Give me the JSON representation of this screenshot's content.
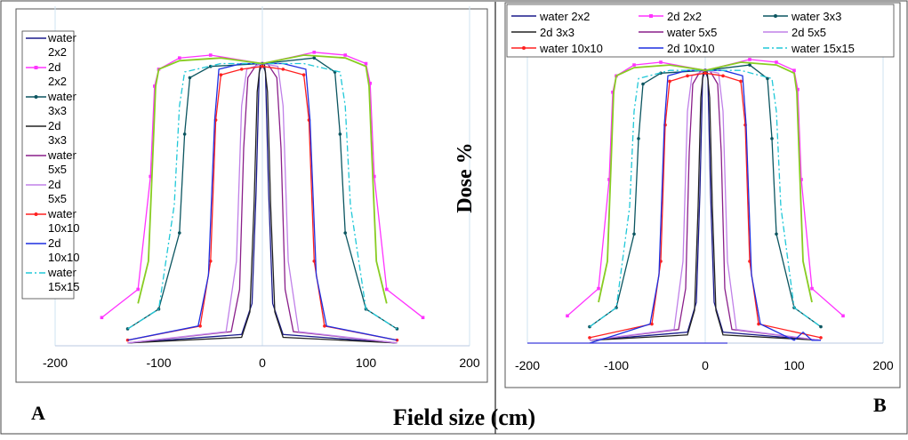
{
  "figure": {
    "ylabel": "Dose %",
    "xlabel": "Field size (cm)",
    "panel_a_label": "A",
    "panel_b_label": "B"
  },
  "legend_b_labels": [
    "water 2x2",
    "2d 2x2",
    "water 3x3",
    "2d 3x3",
    "water 5x5",
    "2d 5x5",
    "water 10x10",
    "2d 10x10",
    "water 15x15"
  ],
  "series_style": [
    {
      "color": "#1a1a8c",
      "dash": "",
      "marker": "none"
    },
    {
      "color": "#ff33ff",
      "dash": "",
      "marker": "square"
    },
    {
      "color": "#0b5560",
      "dash": "",
      "marker": "dot"
    },
    {
      "color": "#222222",
      "dash": "",
      "marker": "none"
    },
    {
      "color": "#8a1f8a",
      "dash": "",
      "marker": "none"
    },
    {
      "color": "#c080e8",
      "dash": "",
      "marker": "none"
    },
    {
      "color": "#ff2020",
      "dash": "",
      "marker": "dot"
    },
    {
      "color": "#1d2ee0",
      "dash": "",
      "marker": "none"
    },
    {
      "color": "#20c8d8",
      "dash": "7,3,2,3",
      "marker": "none"
    }
  ],
  "extra_curve_color": "#88cc22",
  "chart_data": [
    {
      "type": "line",
      "panel": "A",
      "xlim": [
        -200,
        200
      ],
      "ylim": [
        0,
        115
      ],
      "xticks": [
        -200,
        -100,
        0,
        100,
        200
      ],
      "grid": "vertical lines at -200, 0, 200",
      "legend": {
        "placement": "left-top",
        "labels": [
          "water",
          "2x2",
          "2d",
          "2x2",
          "water",
          "3x3",
          "2d",
          "3x3",
          "water",
          "5x5",
          "2d",
          "5x5",
          "water",
          "10x10",
          "2d",
          "10x10",
          "water",
          "15x15"
        ]
      },
      "series": [
        {
          "name": "water 2x2",
          "x": [
            -130,
            -20,
            -10,
            -6,
            -3,
            0,
            3,
            6,
            10,
            20,
            130
          ],
          "y": [
            1,
            4,
            15,
            55,
            97,
            100,
            97,
            55,
            15,
            4,
            1
          ]
        },
        {
          "name": "2d 2x2",
          "x": [
            -155,
            -120,
            -108,
            -104,
            -100,
            -80,
            -50,
            0,
            50,
            80,
            100,
            104,
            108,
            120,
            155
          ],
          "y": [
            10,
            20,
            60,
            92,
            98,
            102,
            103,
            100,
            104,
            103,
            100,
            93,
            60,
            20,
            10
          ]
        },
        {
          "name": "water 3x3",
          "x": [
            -130,
            -100,
            -80,
            -75,
            -70,
            -50,
            0,
            50,
            70,
            75,
            80,
            100,
            130
          ],
          "y": [
            6,
            13,
            40,
            75,
            95,
            99,
            100,
            102,
            97,
            75,
            40,
            13,
            6
          ]
        },
        {
          "name": "2d 3x3",
          "x": [
            -130,
            -20,
            -12,
            -8,
            -5,
            -2,
            2,
            5,
            8,
            12,
            20,
            130
          ],
          "y": [
            1,
            3,
            12,
            50,
            90,
            100,
            100,
            90,
            50,
            12,
            3,
            1
          ]
        },
        {
          "name": "water 5x5",
          "x": [
            -130,
            -30,
            -22,
            -18,
            -14,
            -5,
            5,
            14,
            18,
            22,
            30,
            130
          ],
          "y": [
            1,
            5,
            20,
            70,
            95,
            100,
            100,
            95,
            70,
            20,
            5,
            1
          ]
        },
        {
          "name": "2d 5x5",
          "x": [
            -130,
            -35,
            -25,
            -20,
            -15,
            0,
            15,
            20,
            25,
            35,
            130
          ],
          "y": [
            1,
            5,
            30,
            85,
            98,
            100,
            99,
            85,
            30,
            5,
            1
          ]
        },
        {
          "name": "water 10x10",
          "x": [
            -130,
            -60,
            -50,
            -45,
            -40,
            -20,
            0,
            20,
            40,
            45,
            50,
            60,
            130
          ],
          "y": [
            2,
            7,
            30,
            80,
            96,
            98,
            99,
            98,
            96,
            80,
            30,
            7,
            2
          ]
        },
        {
          "name": "2d 10x10",
          "x": [
            -130,
            -62,
            -52,
            -46,
            -42,
            -20,
            0,
            20,
            42,
            46,
            52,
            62,
            130
          ],
          "y": [
            2,
            7,
            25,
            80,
            98,
            100,
            100,
            100,
            98,
            80,
            25,
            7,
            2
          ]
        },
        {
          "name": "water 15x15",
          "x": [
            -130,
            -100,
            -85,
            -80,
            -75,
            -40,
            0,
            40,
            75,
            80,
            85,
            100,
            130
          ],
          "y": [
            6,
            13,
            50,
            85,
            97,
            100,
            100,
            100,
            97,
            85,
            50,
            13,
            6
          ]
        },
        {
          "name": "",
          "x": [
            -120,
            -110,
            -106,
            -103,
            -100,
            -80,
            -40,
            0,
            40,
            80,
            100,
            103,
            106,
            110,
            120
          ],
          "y": [
            15,
            30,
            65,
            92,
            98,
            101,
            102,
            100,
            103,
            102,
            99,
            92,
            65,
            30,
            15
          ]
        }
      ]
    },
    {
      "type": "line",
      "panel": "B",
      "xlim": [
        -200,
        200
      ],
      "ylim": [
        0,
        115
      ],
      "xticks": [
        -200,
        -100,
        0,
        100,
        200
      ],
      "grid": "vertical lines at -200, 0, 200",
      "legend": {
        "placement": "top",
        "columns": 3
      },
      "series": [
        {
          "name": "water 2x2",
          "x": [
            -130,
            -20,
            -10,
            -6,
            -3,
            0,
            3,
            6,
            10,
            20,
            130
          ],
          "y": [
            1,
            4,
            15,
            55,
            97,
            100,
            97,
            55,
            15,
            4,
            1
          ]
        },
        {
          "name": "2d 2x2",
          "x": [
            -155,
            -120,
            -108,
            -104,
            -100,
            -80,
            -50,
            0,
            50,
            80,
            100,
            104,
            108,
            120,
            155
          ],
          "y": [
            10,
            20,
            60,
            92,
            98,
            102,
            103,
            100,
            104,
            103,
            100,
            93,
            60,
            20,
            10
          ]
        },
        {
          "name": "water 3x3",
          "x": [
            -130,
            -100,
            -80,
            -75,
            -70,
            -50,
            0,
            50,
            70,
            75,
            80,
            100,
            130
          ],
          "y": [
            6,
            13,
            40,
            75,
            95,
            99,
            100,
            102,
            97,
            75,
            40,
            13,
            6
          ]
        },
        {
          "name": "2d 3x3",
          "x": [
            -130,
            -20,
            -12,
            -8,
            -5,
            -2,
            2,
            5,
            8,
            12,
            20,
            130
          ],
          "y": [
            1,
            3,
            12,
            50,
            90,
            100,
            100,
            90,
            50,
            12,
            3,
            1
          ]
        },
        {
          "name": "water 5x5",
          "x": [
            -130,
            -30,
            -22,
            -18,
            -14,
            -5,
            5,
            14,
            18,
            22,
            30,
            130
          ],
          "y": [
            1,
            5,
            20,
            70,
            95,
            100,
            100,
            95,
            70,
            20,
            5,
            1
          ]
        },
        {
          "name": "2d 5x5",
          "x": [
            -130,
            -35,
            -25,
            -20,
            -15,
            0,
            15,
            20,
            25,
            35,
            130
          ],
          "y": [
            1,
            5,
            30,
            85,
            98,
            100,
            99,
            85,
            30,
            5,
            1
          ]
        },
        {
          "name": "water 10x10",
          "x": [
            -130,
            -60,
            -50,
            -45,
            -40,
            -20,
            0,
            20,
            40,
            45,
            50,
            60,
            130
          ],
          "y": [
            2,
            7,
            30,
            80,
            96,
            98,
            99,
            98,
            96,
            80,
            30,
            7,
            2
          ]
        },
        {
          "name": "2d 10x10",
          "x": [
            -130,
            -100,
            -62,
            -52,
            -46,
            -42,
            -20,
            0,
            20,
            42,
            46,
            52,
            62,
            100,
            110,
            120,
            130
          ],
          "y": [
            0,
            3,
            7,
            25,
            80,
            98,
            100,
            100,
            100,
            98,
            80,
            25,
            7,
            1,
            4,
            1,
            1
          ]
        },
        {
          "name": "water 15x15",
          "x": [
            -130,
            -100,
            -85,
            -80,
            -75,
            -40,
            0,
            40,
            75,
            80,
            85,
            100,
            130
          ],
          "y": [
            6,
            13,
            50,
            85,
            97,
            100,
            100,
            100,
            97,
            85,
            50,
            13,
            6
          ]
        },
        {
          "name": "",
          "x": [
            -120,
            -110,
            -106,
            -103,
            -100,
            -80,
            -40,
            0,
            40,
            80,
            100,
            103,
            106,
            110,
            120
          ],
          "y": [
            15,
            30,
            65,
            92,
            98,
            101,
            102,
            100,
            103,
            102,
            99,
            92,
            65,
            30,
            15
          ]
        },
        {
          "name": "",
          "x": [
            -200,
            25
          ],
          "y": [
            0,
            0
          ]
        }
      ]
    }
  ]
}
